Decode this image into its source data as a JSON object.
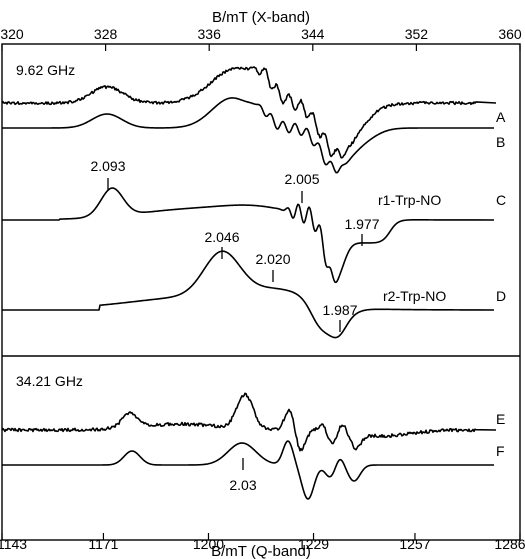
{
  "chart_data": {
    "type": "line",
    "top_axis": {
      "title": "B/mT (X-band)",
      "range": [
        320,
        360
      ],
      "ticks": [
        320,
        328,
        336,
        344,
        352,
        360
      ]
    },
    "bottom_axis": {
      "title": "B/mT (Q-band)",
      "range": [
        1143,
        1286
      ],
      "ticks": [
        1143,
        1171,
        1200,
        1229,
        1257,
        1286
      ]
    },
    "panels": [
      {
        "frequency_label": "9.62 GHz",
        "band": "X"
      },
      {
        "frequency_label": "34.21 GHz",
        "band": "Q"
      }
    ],
    "series": [
      {
        "name": "A",
        "kind": "experimental"
      },
      {
        "name": "B",
        "kind": "simulation"
      },
      {
        "name": "C",
        "species": "r1-Trp-NO",
        "kind": "component"
      },
      {
        "name": "D",
        "species": "r2-Trp-NO",
        "kind": "component"
      },
      {
        "name": "E",
        "kind": "experimental"
      },
      {
        "name": "F",
        "kind": "simulation"
      }
    ],
    "g_value_annotations": [
      {
        "text": "2.093",
        "trace": "C",
        "band": "X",
        "field": 329.5
      },
      {
        "text": "2.005",
        "trace": "C",
        "band": "X",
        "field": 343.3
      },
      {
        "text": "1.977",
        "trace": "C",
        "band": "X",
        "field": 347.7
      },
      {
        "text": "2.046",
        "trace": "D",
        "band": "X",
        "field": 336.0
      },
      {
        "text": "2.020",
        "trace": "D",
        "band": "X",
        "field": 340.6
      },
      {
        "text": "1.987",
        "trace": "D",
        "band": "X",
        "field": 345.8
      },
      {
        "text": "2.03",
        "trace": "F",
        "band": "Q",
        "field": 1208
      }
    ],
    "grid": false
  }
}
